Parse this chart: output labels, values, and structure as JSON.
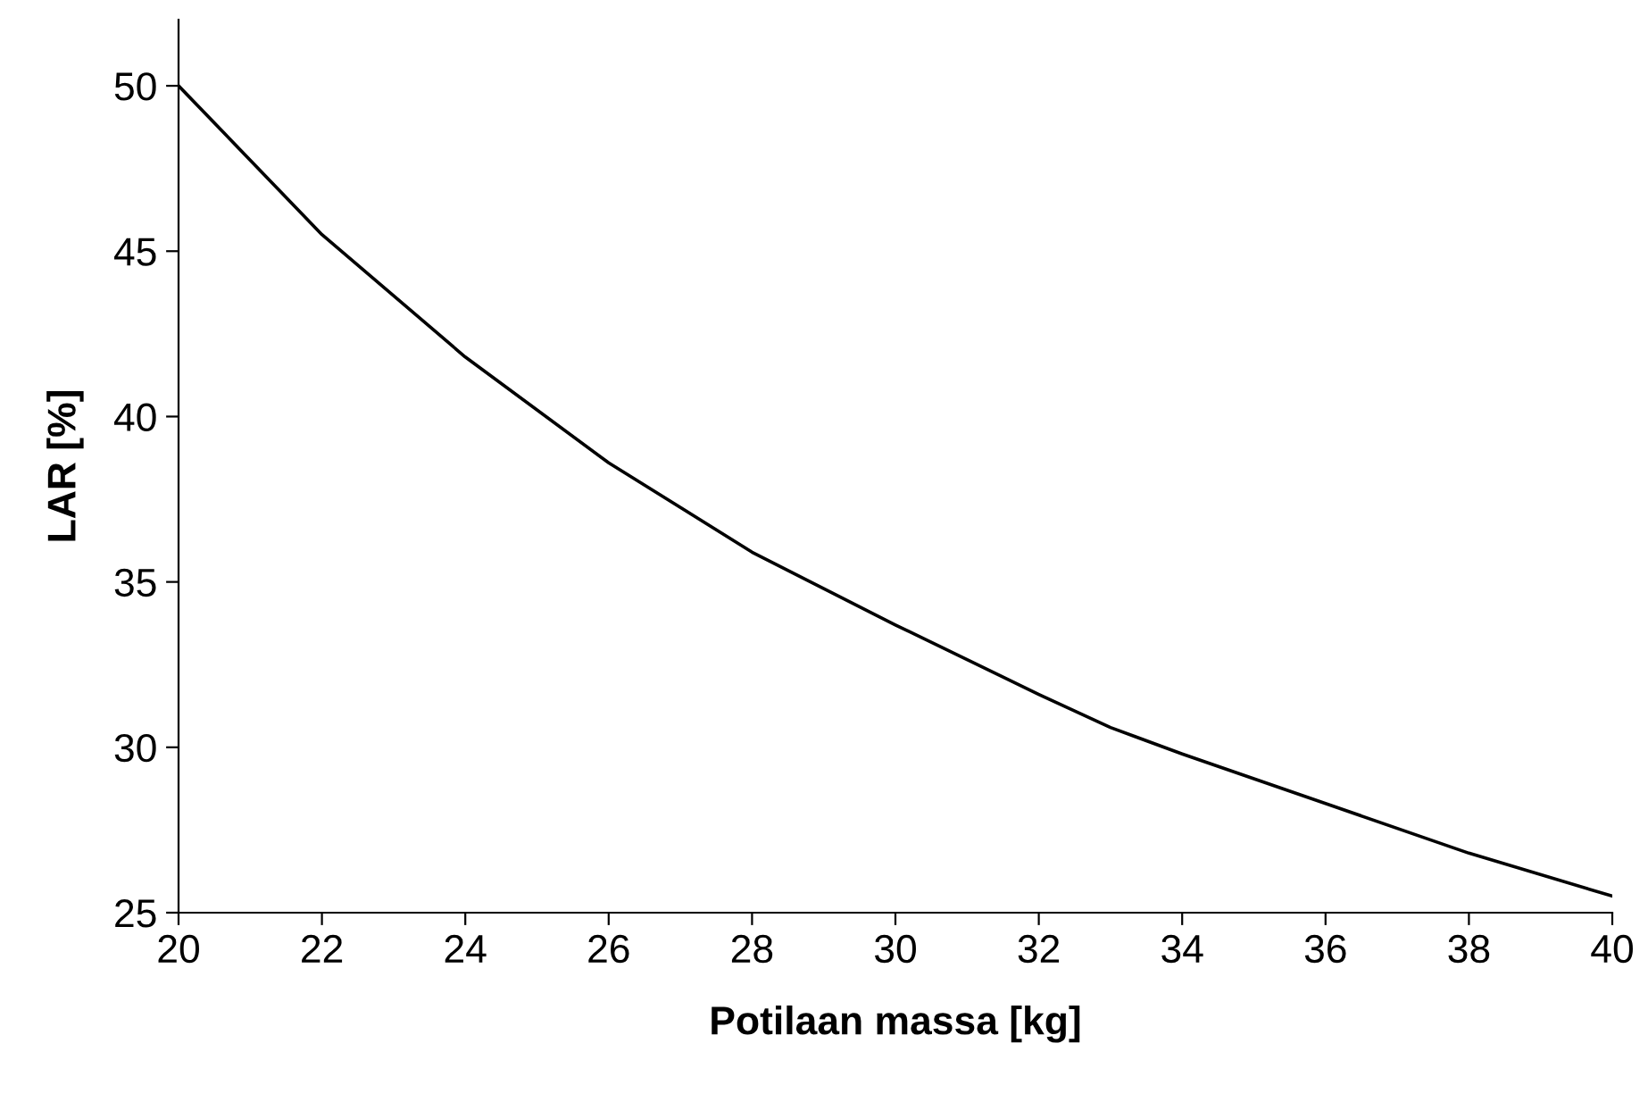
{
  "chart_data": {
    "type": "line",
    "xlabel": "Potilaan massa [kg]",
    "ylabel": "LAR [%]",
    "x": [
      20,
      22,
      24,
      26,
      28,
      29,
      30,
      32,
      33,
      34,
      36,
      38,
      40
    ],
    "series": [
      {
        "color": "#000000",
        "values": [
          50.0,
          45.5,
          41.8,
          38.6,
          35.9,
          34.8,
          33.7,
          31.6,
          30.6,
          29.8,
          28.3,
          26.8,
          25.5
        ]
      }
    ],
    "xlim": [
      20,
      40
    ],
    "xticks": [
      20,
      22,
      24,
      26,
      28,
      30,
      32,
      34,
      36,
      38,
      40
    ],
    "ylim": [
      25,
      52
    ],
    "yticks": [
      25,
      30,
      35,
      40,
      45,
      50
    ],
    "grid": false,
    "legend": false,
    "marker": "none",
    "line_style": "solid"
  }
}
